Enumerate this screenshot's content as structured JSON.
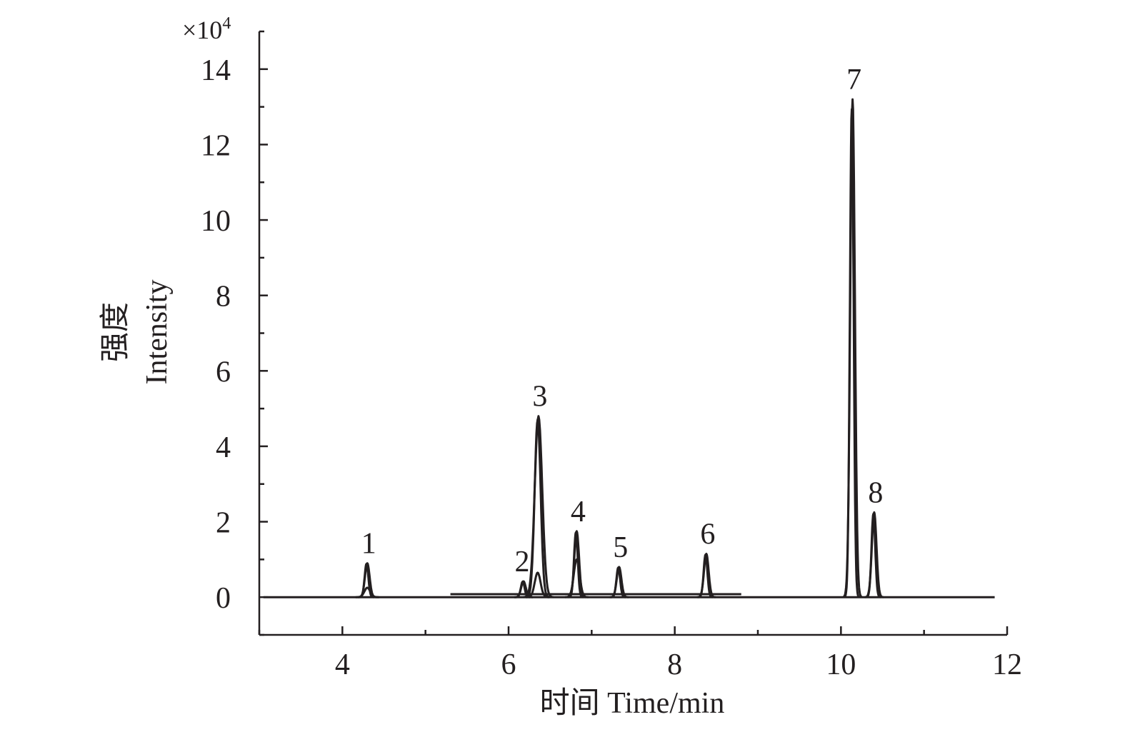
{
  "chart_data": {
    "type": "line",
    "title": "",
    "xlabel": "时间 Time/min",
    "ylabel_cn": "强度",
    "ylabel_en": "Intensity",
    "y_multiplier_base": "×10",
    "y_multiplier_exp": "4",
    "xlim": [
      3,
      12
    ],
    "ylim": [
      -1,
      15
    ],
    "x_ticks": [
      4,
      6,
      8,
      10,
      12
    ],
    "y_ticks": [
      0,
      2,
      4,
      6,
      8,
      10,
      12,
      14
    ],
    "x_tick_labels": [
      "4",
      "6",
      "8",
      "10",
      "12"
    ],
    "y_tick_labels": [
      "0",
      "2",
      "4",
      "6",
      "8",
      "10",
      "12",
      "14"
    ],
    "grid": false,
    "baseline_segments": [
      {
        "x_start": 3.05,
        "x_end": 11.85,
        "y": 0.0
      },
      {
        "x_start": 5.3,
        "x_end": 8.8,
        "y": 0.08
      }
    ],
    "peaks": [
      {
        "label": "1",
        "rt": 4.3,
        "height": 0.9
      },
      {
        "label": "2",
        "rt": 6.18,
        "height": 0.42
      },
      {
        "label": "3",
        "rt": 6.36,
        "height": 4.8
      },
      {
        "label": "4",
        "rt": 6.82,
        "height": 1.75
      },
      {
        "label": "5",
        "rt": 7.33,
        "height": 0.8
      },
      {
        "label": "6",
        "rt": 8.38,
        "height": 1.15
      },
      {
        "label": "7",
        "rt": 10.14,
        "height": 13.2
      },
      {
        "label": "8",
        "rt": 10.4,
        "height": 2.25
      }
    ],
    "minor_peaks": [
      {
        "rt": 6.35,
        "height": 0.65
      },
      {
        "rt": 4.3,
        "height": 0.25
      },
      {
        "rt": 6.82,
        "height": 1.0
      }
    ]
  }
}
